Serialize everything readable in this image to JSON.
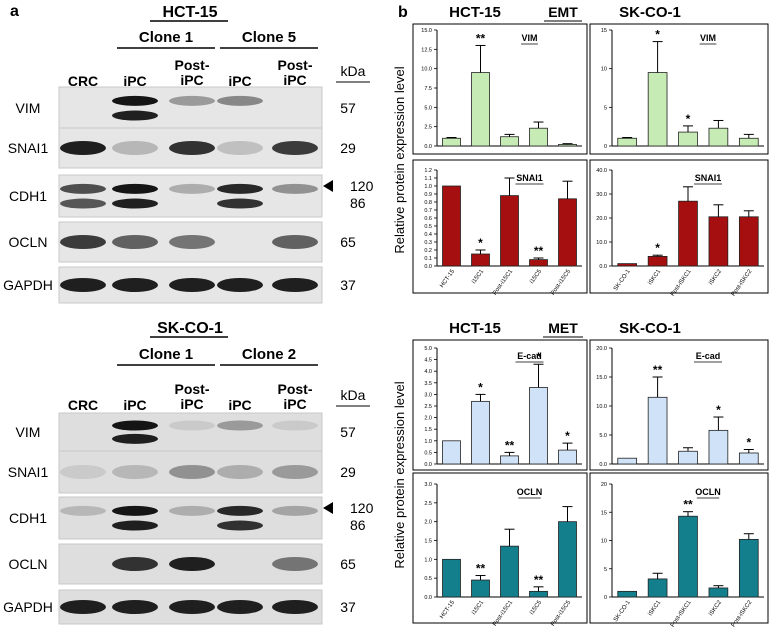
{
  "panel_a": {
    "label": "a",
    "kda_unit": "kDa",
    "blocks": [
      {
        "title": "HCT-15",
        "groups": [
          {
            "name": "Clone 1",
            "lanes": [
              "iPC",
              "Post-\niPC"
            ]
          },
          {
            "name": "Clone 5",
            "lanes": [
              "iPC",
              "Post-\niPC"
            ]
          }
        ],
        "crc_label": "CRC",
        "rows": [
          {
            "protein": "VIM",
            "kda": "57",
            "bands": [
              0.0,
              1.0,
              0.3,
              0.4,
              0.0
            ],
            "double": true
          },
          {
            "protein": "SNAI1",
            "kda": "29",
            "bands": [
              0.95,
              0.15,
              0.85,
              0.1,
              0.8
            ]
          },
          {
            "protein": "CDH1",
            "kda": "120\n86",
            "arrow": true,
            "bands": [
              0.7,
              1.0,
              0.2,
              0.9,
              0.35
            ],
            "double": true
          },
          {
            "protein": "OCLN",
            "kda": "65",
            "bands": [
              0.8,
              0.6,
              0.5,
              0.0,
              0.6
            ]
          },
          {
            "protein": "GAPDH",
            "kda": "37",
            "bands": [
              0.95,
              0.95,
              0.95,
              0.95,
              0.95
            ]
          }
        ]
      },
      {
        "title": "SK-CO-1",
        "groups": [
          {
            "name": "Clone 1",
            "lanes": [
              "iPC",
              "Post-\niPC"
            ]
          },
          {
            "name": "Clone 2",
            "lanes": [
              "iPC",
              "Post-\niPC"
            ]
          }
        ],
        "crc_label": "CRC",
        "rows": [
          {
            "protein": "VIM",
            "kda": "57",
            "bands": [
              0.0,
              1.0,
              0.05,
              0.3,
              0.05
            ],
            "double": true
          },
          {
            "protein": "SNAI1",
            "kda": "29",
            "bands": [
              0.05,
              0.15,
              0.35,
              0.2,
              0.3
            ]
          },
          {
            "protein": "CDH1",
            "kda": "120\n86",
            "arrow": true,
            "bands": [
              0.15,
              1.0,
              0.2,
              0.9,
              0.25
            ],
            "double": true
          },
          {
            "protein": "OCLN",
            "kda": "65",
            "bands": [
              0.0,
              0.85,
              0.95,
              0.0,
              0.5
            ]
          },
          {
            "protein": "GAPDH",
            "kda": "37",
            "bands": [
              0.95,
              0.95,
              0.95,
              0.95,
              0.95
            ]
          }
        ]
      }
    ]
  },
  "panel_b": {
    "label": "b",
    "ylabel_top": "Relative protein expression level",
    "ylabel_bottom": "Relative protein expression level",
    "section_emt": "EMT",
    "section_met": "MET",
    "col_titles_top": [
      "HCT-15",
      "SK-CO-1"
    ],
    "col_titles_bottom": [
      "HCT-15",
      "SK-CO-1"
    ]
  },
  "chart_data": [
    {
      "type": "bar",
      "title": "VIM",
      "cell_line": "HCT-15",
      "ylim": [
        0,
        15
      ],
      "yticks": [
        "0.0",
        "2.5",
        "5.0",
        "7.5",
        "10.0",
        "12.5",
        "15.0"
      ],
      "categories": [
        "",
        "",
        "",
        "",
        ""
      ],
      "values": [
        1.0,
        9.5,
        1.2,
        2.3,
        0.2
      ],
      "errors": [
        0.1,
        3.5,
        0.3,
        0.8,
        0.1
      ],
      "sig": [
        "",
        "**",
        "",
        "",
        ""
      ],
      "color": "#c6ebb4"
    },
    {
      "type": "bar",
      "title": "VIM",
      "cell_line": "SK-CO-1",
      "ylim": [
        0,
        15
      ],
      "yticks": [
        "0",
        "5",
        "10",
        "15"
      ],
      "categories": [
        "",
        "",
        "",
        "",
        ""
      ],
      "values": [
        1.0,
        9.5,
        1.8,
        2.3,
        1.0
      ],
      "errors": [
        0.1,
        4.0,
        0.8,
        1.0,
        0.5
      ],
      "sig": [
        "",
        "*",
        "*",
        "",
        ""
      ],
      "color": "#c6ebb4"
    },
    {
      "type": "bar",
      "title": "SNAI1",
      "cell_line": "HCT-15",
      "ylim": [
        0,
        1.2
      ],
      "yticks": [
        "0.0",
        "0.1",
        "0.2",
        "0.3",
        "0.4",
        "0.5",
        "0.6",
        "0.7",
        "0.8",
        "0.9",
        "1.0",
        "1.1",
        "1.2"
      ],
      "categories": [
        "HCT-15",
        "i15C1",
        "Post-i15C1",
        "i15C5",
        "Post-i15C5"
      ],
      "values": [
        1.0,
        0.15,
        0.88,
        0.08,
        0.84
      ],
      "errors": [
        0.0,
        0.05,
        0.22,
        0.02,
        0.22
      ],
      "sig": [
        "",
        "*",
        "",
        "**",
        ""
      ],
      "color": "#a50f0f"
    },
    {
      "type": "bar",
      "title": "SNAI1",
      "cell_line": "SK-CO-1",
      "ylim": [
        0,
        40
      ],
      "yticks": [
        "0.0",
        "10.0",
        "20.0",
        "30.0",
        "40.0"
      ],
      "categories": [
        "SK-CO-1",
        "iSKC1",
        "Post-iSKC1",
        "iSKC2",
        "Post-iSKC2"
      ],
      "values": [
        1.0,
        4.0,
        27.0,
        20.5,
        20.5
      ],
      "errors": [
        0.0,
        0.5,
        6.0,
        5.0,
        2.5
      ],
      "sig": [
        "",
        "*",
        "",
        "",
        ""
      ],
      "color": "#a50f0f"
    },
    {
      "type": "bar",
      "title": "E-cad",
      "cell_line": "HCT-15",
      "ylim": [
        0,
        5
      ],
      "yticks": [
        "0.0",
        "0.5",
        "1.0",
        "1.5",
        "2.0",
        "2.5",
        "3.0",
        "3.5",
        "4.0",
        "4.5",
        "5.0"
      ],
      "categories": [
        "",
        "",
        "",
        "",
        ""
      ],
      "values": [
        1.0,
        2.7,
        0.35,
        3.3,
        0.6
      ],
      "errors": [
        0.0,
        0.3,
        0.15,
        1.0,
        0.3
      ],
      "sig": [
        "",
        "*",
        "**",
        "*",
        "*"
      ],
      "color": "#cfe2f7"
    },
    {
      "type": "bar",
      "title": "E-cad",
      "cell_line": "SK-CO-1",
      "ylim": [
        0,
        20
      ],
      "yticks": [
        "0.0",
        "5.0",
        "10.0",
        "15.0",
        "20.0"
      ],
      "categories": [
        "",
        "",
        "",
        "",
        ""
      ],
      "values": [
        1.0,
        11.5,
        2.2,
        5.8,
        1.9
      ],
      "errors": [
        0.0,
        3.5,
        0.6,
        2.3,
        0.6
      ],
      "sig": [
        "",
        "**",
        "",
        "*",
        "*"
      ],
      "color": "#cfe2f7"
    },
    {
      "type": "bar",
      "title": "OCLN",
      "cell_line": "HCT-15",
      "ylim": [
        0,
        3
      ],
      "yticks": [
        "0.0",
        "0.5",
        "1.0",
        "1.5",
        "2.0",
        "2.5",
        "3.0"
      ],
      "categories": [
        "HCT-15",
        "i15C1",
        "Post-i15C1",
        "i15C5",
        "Post-i15C5"
      ],
      "values": [
        1.0,
        0.45,
        1.35,
        0.15,
        2.0
      ],
      "errors": [
        0.0,
        0.12,
        0.45,
        0.12,
        0.4
      ],
      "sig": [
        "",
        "**",
        "",
        "**",
        ""
      ],
      "color": "#137f8c"
    },
    {
      "type": "bar",
      "title": "OCLN",
      "cell_line": "SK-CO-1",
      "ylim": [
        0,
        20
      ],
      "yticks": [
        "0",
        "5",
        "10",
        "15",
        "20"
      ],
      "categories": [
        "SK-CO-1",
        "iSKC1",
        "Post-iSKC1",
        "iSKC2",
        "Post-iSKC2"
      ],
      "values": [
        1.0,
        3.2,
        14.3,
        1.6,
        10.2
      ],
      "errors": [
        0.0,
        1.0,
        0.8,
        0.4,
        1.0
      ],
      "sig": [
        "",
        "",
        "**",
        "",
        ""
      ],
      "color": "#137f8c"
    }
  ]
}
